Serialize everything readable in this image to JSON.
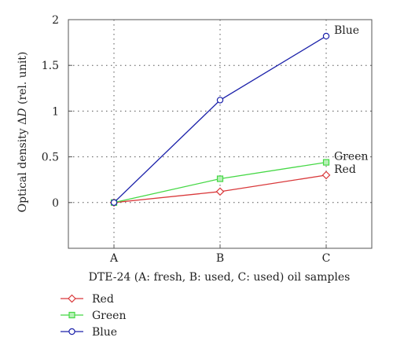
{
  "chart_data": {
    "type": "line",
    "categories": [
      "A",
      "B",
      "C"
    ],
    "series": [
      {
        "name": "Red",
        "color": "#d9383a",
        "marker": "diamond",
        "values": [
          0.0,
          0.12,
          0.3
        ]
      },
      {
        "name": "Green",
        "color": "#45d845",
        "marker": "square",
        "values": [
          0.0,
          0.26,
          0.44
        ]
      },
      {
        "name": "Blue",
        "color": "#1c22aa",
        "marker": "circle",
        "values": [
          0.0,
          1.12,
          1.82
        ]
      }
    ],
    "series_end_labels": [
      "Red",
      "Green",
      "Blue"
    ],
    "title": "",
    "xlabel": "DTE-24 (A: fresh, B: used, C: used) oil samples",
    "ylabel_main": "Optical density ",
    "ylabel_delta": "Δ",
    "ylabel_var": "D",
    "ylabel_unit": " (rel. unit)",
    "ylim": [
      -0.5,
      2
    ],
    "yticks": [
      0,
      0.5,
      1,
      1.5,
      2
    ],
    "ytick_labels": [
      "0",
      "0.5",
      "1",
      "1.5",
      "2"
    ],
    "grid": true,
    "legend_position": "bottom-left"
  }
}
